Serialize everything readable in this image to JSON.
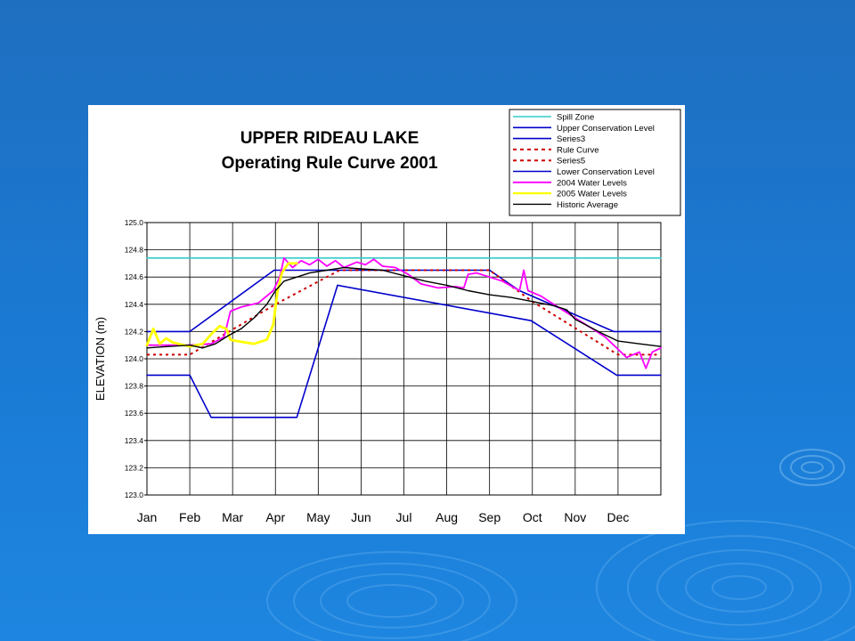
{
  "slide": {
    "background_color": "#1a74cc",
    "decoration": "water-ripple-rings"
  },
  "chart_data": {
    "type": "line",
    "title_lines": [
      "UPPER RIDEAU LAKE",
      "Operating Rule Curve 2001"
    ],
    "xlabel": "",
    "ylabel": "ELEVATION (m)",
    "x_ticks": [
      "Jan",
      "Feb",
      "Mar",
      "Apr",
      "May",
      "Jun",
      "Jul",
      "Aug",
      "Sep",
      "Oct",
      "Nov",
      "Dec"
    ],
    "x_range": [
      0,
      12
    ],
    "ylim": [
      123.0,
      125.0
    ],
    "y_ticks": [
      "125.0",
      "124.8",
      "124.6",
      "124.4",
      "124.2",
      "124.0",
      "123.8",
      "123.6",
      "123.4",
      "123.2",
      "123.0"
    ],
    "y_tick_values": [
      125.0,
      124.8,
      124.6,
      124.4,
      124.2,
      124.0,
      123.8,
      123.6,
      123.4,
      123.2,
      123.0
    ],
    "grid": true,
    "legend_position": "top-right",
    "series": [
      {
        "name": "Spill Zone",
        "color": "#33cccc",
        "dash": "solid",
        "width": 1.6,
        "points": [
          [
            0,
            124.74
          ],
          [
            12,
            124.74
          ]
        ]
      },
      {
        "name": "Upper Conservation Level",
        "color": "#0000cc",
        "dash": "solid",
        "width": 1.6,
        "points": [
          [
            0,
            124.2
          ],
          [
            1.0,
            124.2
          ],
          [
            2.97,
            124.65
          ],
          [
            8.0,
            124.65
          ],
          [
            8.7,
            124.5
          ],
          [
            10.9,
            124.2
          ],
          [
            12,
            124.2
          ]
        ]
      },
      {
        "name": "Series3",
        "color": "#0000cc",
        "dash": "solid",
        "width": 1.6,
        "points": []
      },
      {
        "name": "Rule Curve",
        "color": "#cc0000",
        "dash": "dotted",
        "width": 2,
        "points": [
          [
            0,
            124.03
          ],
          [
            1.0,
            124.03
          ],
          [
            3.0,
            124.4
          ],
          [
            4.5,
            124.65
          ],
          [
            8.0,
            124.65
          ],
          [
            9.0,
            124.42
          ],
          [
            11.0,
            124.03
          ],
          [
            12,
            124.03
          ]
        ]
      },
      {
        "name": "Series5",
        "color": "#cc0000",
        "dash": "dotted",
        "width": 2,
        "points": []
      },
      {
        "name": "Lower Conservation Level",
        "color": "#0000cc",
        "dash": "solid",
        "width": 1.6,
        "points": [
          [
            0,
            123.88
          ],
          [
            1.0,
            123.88
          ],
          [
            1.5,
            123.57
          ],
          [
            3.5,
            123.57
          ],
          [
            4.45,
            124.54
          ],
          [
            8.97,
            124.28
          ],
          [
            10.97,
            123.88
          ],
          [
            12,
            123.88
          ]
        ]
      },
      {
        "name": "2004 Water Levels",
        "color": "#ff00ff",
        "dash": "solid",
        "width": 1.8,
        "points": [
          [
            0,
            124.1
          ],
          [
            1.0,
            124.1
          ],
          [
            1.5,
            124.11
          ],
          [
            1.8,
            124.16
          ],
          [
            1.95,
            124.35
          ],
          [
            2.2,
            124.38
          ],
          [
            2.6,
            124.41
          ],
          [
            2.95,
            124.5
          ],
          [
            3.1,
            124.6
          ],
          [
            3.2,
            124.74
          ],
          [
            3.4,
            124.67
          ],
          [
            3.6,
            124.72
          ],
          [
            3.8,
            124.69
          ],
          [
            4.0,
            124.73
          ],
          [
            4.2,
            124.68
          ],
          [
            4.4,
            124.72
          ],
          [
            4.6,
            124.67
          ],
          [
            4.9,
            124.71
          ],
          [
            5.1,
            124.69
          ],
          [
            5.3,
            124.73
          ],
          [
            5.5,
            124.68
          ],
          [
            5.8,
            124.67
          ],
          [
            6.1,
            124.62
          ],
          [
            6.4,
            124.55
          ],
          [
            6.8,
            124.52
          ],
          [
            7.2,
            124.53
          ],
          [
            7.4,
            124.52
          ],
          [
            7.5,
            124.62
          ],
          [
            7.7,
            124.63
          ],
          [
            8.0,
            124.6
          ],
          [
            8.3,
            124.57
          ],
          [
            8.7,
            124.5
          ],
          [
            8.8,
            124.65
          ],
          [
            8.9,
            124.5
          ],
          [
            9.2,
            124.46
          ],
          [
            9.6,
            124.38
          ],
          [
            10.0,
            124.3
          ],
          [
            10.4,
            124.22
          ],
          [
            10.7,
            124.16
          ],
          [
            11.0,
            124.07
          ],
          [
            11.2,
            124.01
          ],
          [
            11.5,
            124.05
          ],
          [
            11.65,
            123.93
          ],
          [
            11.8,
            124.05
          ],
          [
            12,
            124.08
          ]
        ]
      },
      {
        "name": "2005 Water Levels",
        "color": "#ffff00",
        "dash": "solid",
        "width": 2.8,
        "points": [
          [
            0,
            124.1
          ],
          [
            0.15,
            124.22
          ],
          [
            0.3,
            124.11
          ],
          [
            0.45,
            124.15
          ],
          [
            0.6,
            124.12
          ],
          [
            1.0,
            124.09
          ],
          [
            1.3,
            124.11
          ],
          [
            1.5,
            124.18
          ],
          [
            1.7,
            124.24
          ],
          [
            1.85,
            124.22
          ],
          [
            1.95,
            124.14
          ],
          [
            2.1,
            124.13
          ],
          [
            2.5,
            124.11
          ],
          [
            2.8,
            124.14
          ],
          [
            2.95,
            124.25
          ],
          [
            3.05,
            124.5
          ],
          [
            3.15,
            124.63
          ],
          [
            3.3,
            124.7
          ],
          [
            3.5,
            124.7
          ]
        ]
      },
      {
        "name": "Historic Average",
        "color": "#000000",
        "dash": "solid",
        "width": 1.4,
        "points": [
          [
            0,
            124.08
          ],
          [
            0.5,
            124.09
          ],
          [
            1.0,
            124.1
          ],
          [
            1.3,
            124.08
          ],
          [
            1.6,
            124.11
          ],
          [
            1.9,
            124.17
          ],
          [
            2.2,
            124.22
          ],
          [
            2.5,
            124.3
          ],
          [
            2.8,
            124.4
          ],
          [
            3.0,
            124.5
          ],
          [
            3.2,
            124.57
          ],
          [
            3.5,
            124.6
          ],
          [
            3.8,
            124.63
          ],
          [
            4.2,
            124.65
          ],
          [
            4.6,
            124.67
          ],
          [
            5.0,
            124.66
          ],
          [
            5.5,
            124.65
          ],
          [
            6.0,
            124.61
          ],
          [
            6.5,
            124.57
          ],
          [
            7.0,
            124.54
          ],
          [
            7.5,
            124.5
          ],
          [
            8.0,
            124.47
          ],
          [
            8.5,
            124.45
          ],
          [
            9.0,
            124.42
          ],
          [
            9.5,
            124.39
          ],
          [
            9.8,
            124.36
          ],
          [
            10.0,
            124.29
          ],
          [
            10.3,
            124.24
          ],
          [
            10.6,
            124.19
          ],
          [
            11.0,
            124.13
          ],
          [
            11.5,
            124.11
          ],
          [
            12,
            124.09
          ]
        ]
      }
    ]
  }
}
